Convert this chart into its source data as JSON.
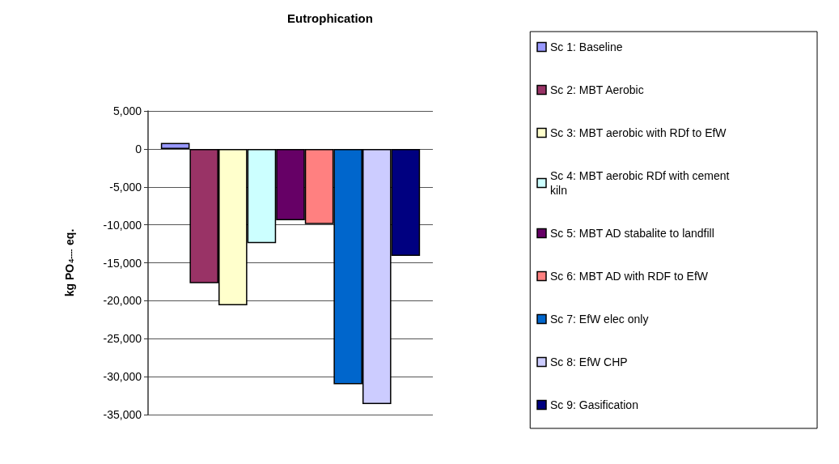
{
  "chart_data": {
    "type": "bar",
    "title": "Eutrophication",
    "ylabel": "kg PO$_{4----}$ eq.",
    "categories": [
      null
    ],
    "series": [
      {
        "name": "Sc 1: Baseline",
        "color": "#9999ff",
        "values": [
          800
        ]
      },
      {
        "name": "Sc 2: MBT Aerobic",
        "color": "#993366",
        "values": [
          -17700
        ]
      },
      {
        "name": "Sc 3: MBT aerobic with RDf to EfW",
        "color": "#ffffcc",
        "values": [
          -20600
        ]
      },
      {
        "name": "Sc 4: MBT aerobic RDf with cement kiln",
        "color": "#ccffff",
        "values": [
          -12400
        ]
      },
      {
        "name": "Sc 5: MBT AD stabalite to landfill",
        "color": "#660066",
        "values": [
          -9400
        ]
      },
      {
        "name": "Sc 6: MBT AD with RDF to EfW",
        "color": "#ff8080",
        "values": [
          -9900
        ]
      },
      {
        "name": "Sc 7: EfW elec only",
        "color": "#0066cc",
        "values": [
          -31000
        ]
      },
      {
        "name": "Sc 8: EfW CHP",
        "color": "#ccccff",
        "values": [
          -33600
        ]
      },
      {
        "name": "Sc 9: Gasification",
        "color": "#000080",
        "values": [
          -14100
        ]
      }
    ],
    "ylim": [
      -35000,
      5000
    ],
    "yticks": [
      {
        "value": -35000,
        "label": "-35,000"
      },
      {
        "value": -30000,
        "label": "-30,000"
      },
      {
        "value": -25000,
        "label": "-25,000"
      },
      {
        "value": -20000,
        "label": "-20,000"
      },
      {
        "value": -15000,
        "label": "-15,000"
      },
      {
        "value": -10000,
        "label": "-10,000"
      },
      {
        "value": -5000,
        "label": "-5,000"
      },
      0,
      {
        "value": 5000,
        "label": "5,000"
      }
    ],
    "grid": "y",
    "legend": "right"
  }
}
